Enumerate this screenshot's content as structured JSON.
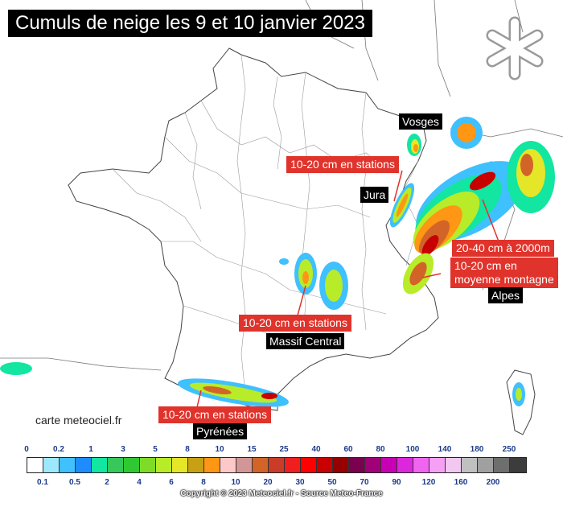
{
  "title": "Cumuls de neige les 9 et 10 janvier 2023",
  "credit": "carte meteociel.fr",
  "copyright": "Copyright © 2023 Meteociel.fr - Source Meteo-France",
  "icons": {
    "snowflake": "snowflake-icon"
  },
  "labels": {
    "vosges": "Vosges",
    "jura": "Jura",
    "alpes": "Alpes",
    "massif_central": "Massif Central",
    "pyrenees": "Pyrénées"
  },
  "annotations": {
    "vosges_note": "10-20 cm en stations",
    "alpes_high": "20-40 cm à 2000m",
    "alpes_mid_1": "10-20 cm en",
    "alpes_mid_2": "moyenne montagne",
    "massif_note": "10-20 cm en stations",
    "pyrenees_note": "10-20 cm en stations"
  },
  "legend": {
    "top_labels": [
      "0",
      "0.2",
      "1",
      "3",
      "5",
      "8",
      "10",
      "15",
      "25",
      "40",
      "60",
      "80",
      "100",
      "140",
      "180",
      "250"
    ],
    "bottom_labels": [
      "0.1",
      "0.5",
      "2",
      "4",
      "6",
      "8",
      "10",
      "20",
      "30",
      "50",
      "70",
      "90",
      "120",
      "160",
      "200"
    ],
    "colors": [
      "#ffffff",
      "#9ee8ff",
      "#3fc0ff",
      "#1e8cff",
      "#12e6a0",
      "#36c85a",
      "#30c832",
      "#7edc28",
      "#b8ec28",
      "#e6e628",
      "#c8a014",
      "#ff9614",
      "#ffc8c8",
      "#d29696",
      "#d26428",
      "#c83c28",
      "#f01e1e",
      "#ff0000",
      "#c80000",
      "#960000",
      "#7a0050",
      "#a00078",
      "#c800b4",
      "#dc28dc",
      "#f064f0",
      "#f5a0f5",
      "#f0c8f0",
      "#c0c0c0",
      "#a0a0a0",
      "#6e6e6e",
      "#3c3c3c"
    ]
  }
}
